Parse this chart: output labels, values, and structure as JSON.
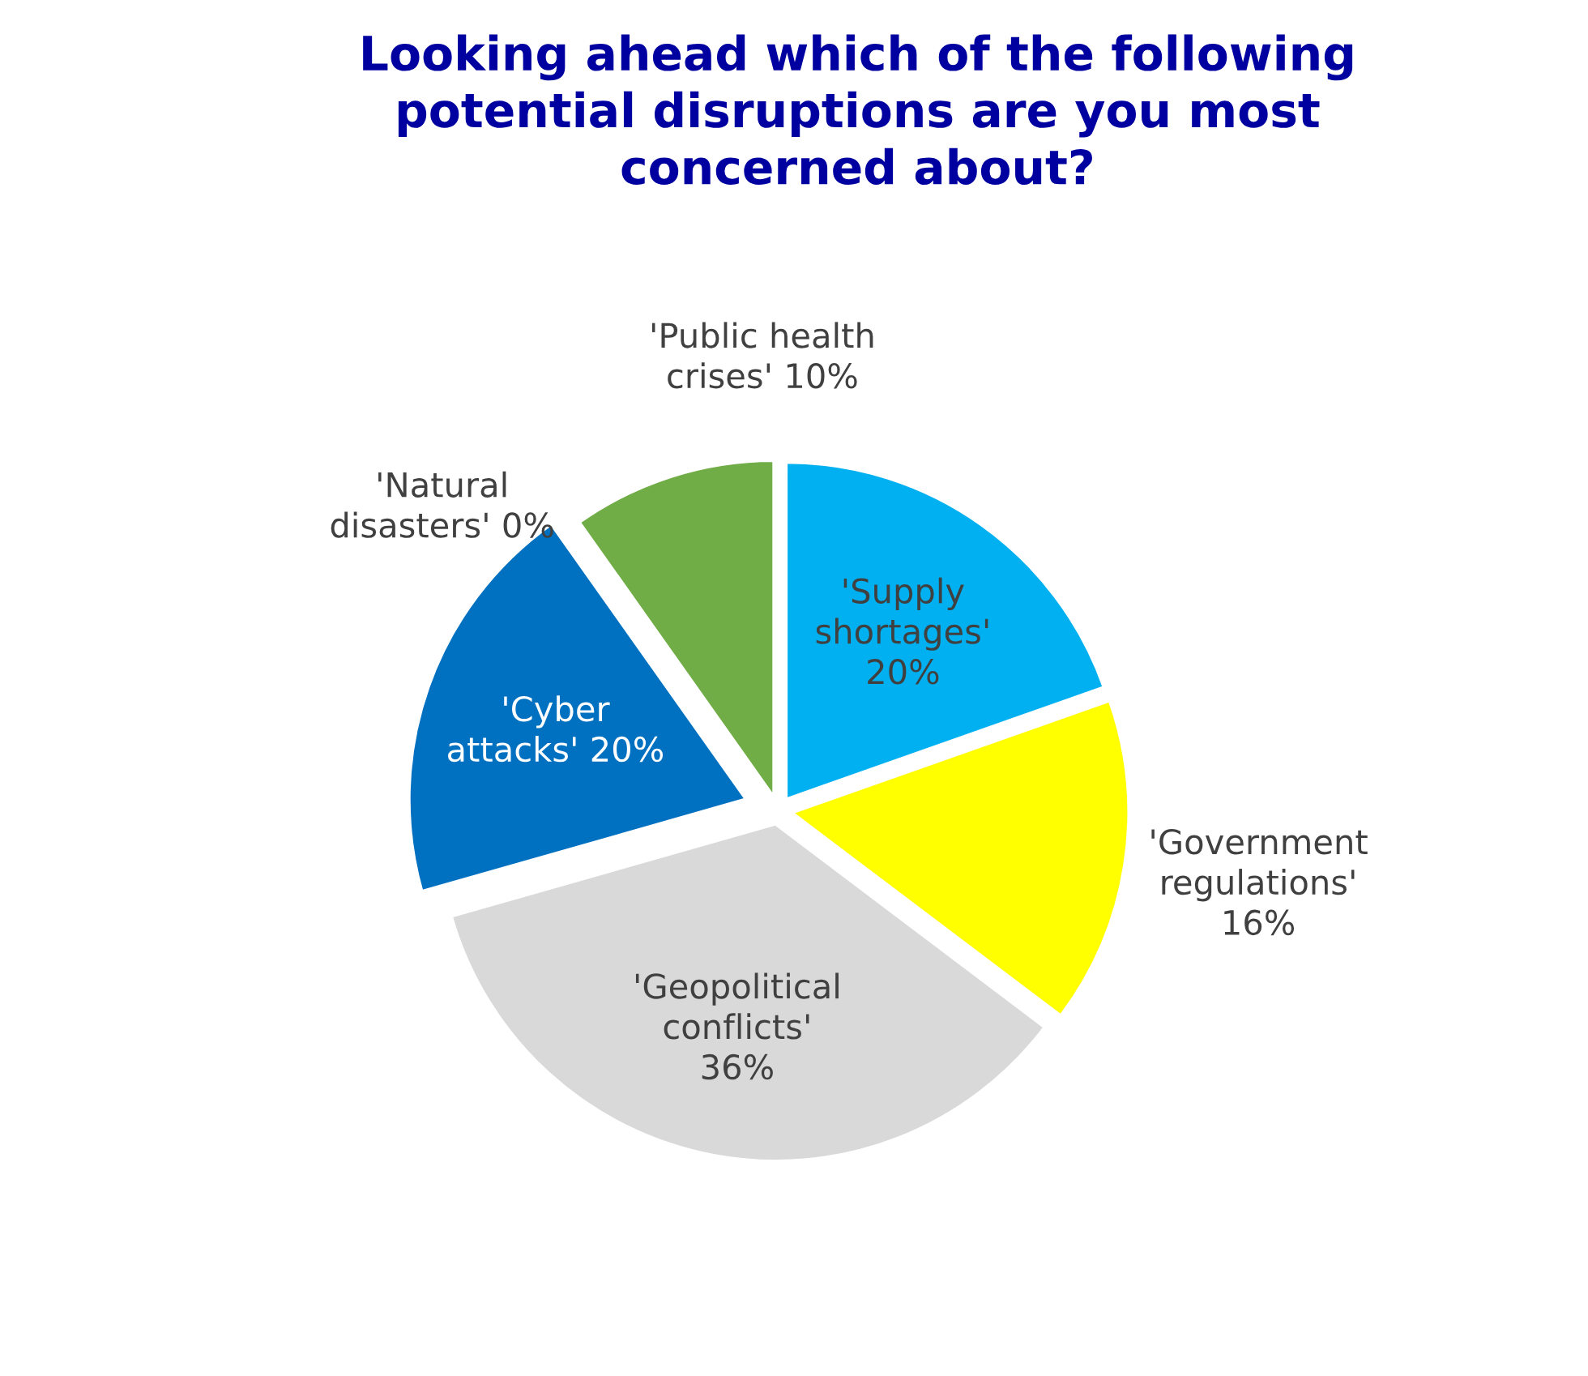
{
  "chart_data": {
    "type": "pie",
    "title": "Looking ahead which of the following\npotential disruptions are you most\nconcerned about?",
    "categories": [
      "'Supply\nshortages'",
      "'Government\nregulations'",
      "'Geopolitical\nconflicts'",
      "'Cyber\nattacks'",
      "'Natural\ndisasters'",
      "'Public health\ncrises'"
    ],
    "values": [
      20,
      16,
      36,
      20,
      0,
      10
    ],
    "value_labels": [
      "20%",
      "16%",
      "36%",
      "20%",
      "0%",
      "10%"
    ],
    "colors": [
      "#00b0f0",
      "#ffff00",
      "#d9d9d9",
      "#0070c0",
      "#ffc000",
      "#70ad47"
    ]
  }
}
